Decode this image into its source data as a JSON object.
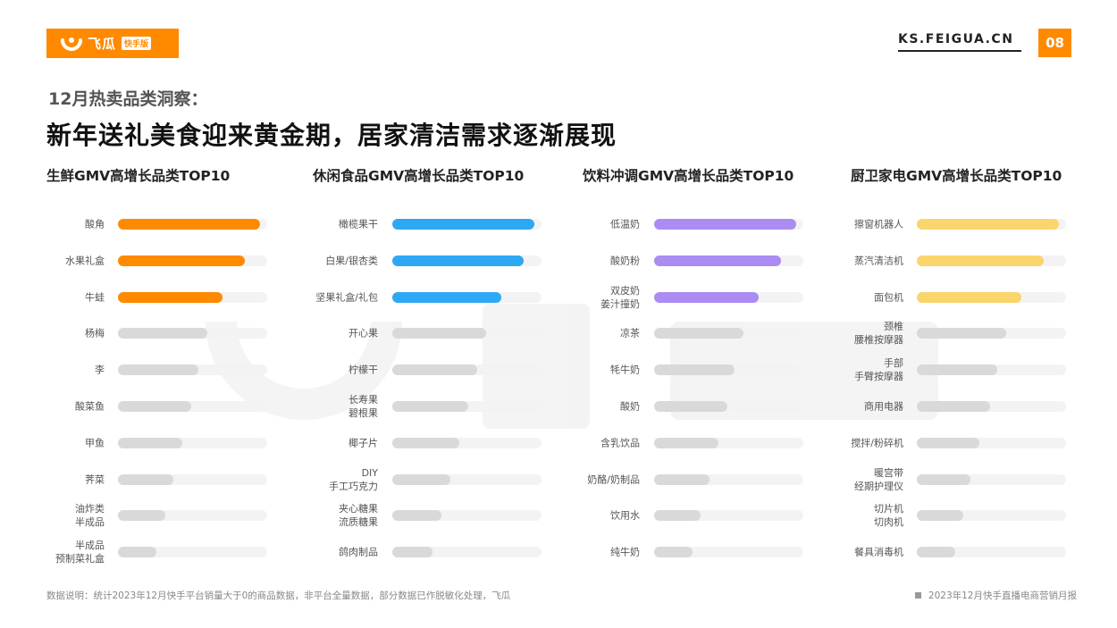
{
  "header": {
    "brand": "飞瓜",
    "brand_badge": "快手版",
    "site": "KS.FEIGUA.CN",
    "page_number": "08"
  },
  "subtitle": "12月热卖品类洞察：",
  "title": "新年送礼美食迎来黄金期，居家清洁需求逐渐展现",
  "colors": {
    "accent": "#FF8A00",
    "gray_bar": "#D9D9D9",
    "track": "#F3F3F3"
  },
  "chart_data": [
    {
      "type": "bar",
      "orientation": "horizontal",
      "title": "生鲜GMV高增长品类TOP10",
      "highlight_color": "#FF8A00",
      "highlight_count": 3,
      "xlim": [
        0,
        100
      ],
      "categories": [
        "酸角",
        "水果礼盒",
        "牛蛙",
        "杨梅",
        "李",
        "酸菜鱼",
        "甲鱼",
        "荠菜",
        "油炸类\n半成品",
        "半成品\n预制菜礼盒"
      ],
      "values": [
        95,
        85,
        70,
        60,
        54,
        49,
        43,
        37,
        32,
        26
      ]
    },
    {
      "type": "bar",
      "orientation": "horizontal",
      "title": "休闲食品GMV高增长品类TOP10",
      "highlight_color": "#2EA8F4",
      "highlight_count": 3,
      "xlim": [
        0,
        100
      ],
      "categories": [
        "橄榄果干",
        "白果/银杏类",
        "坚果礼盒/礼包",
        "开心果",
        "柠檬干",
        "长寿果\n碧根果",
        "椰子片",
        "DIY\n手工巧克力",
        "夹心糖果\n流质糖果",
        "鸽肉制品"
      ],
      "values": [
        95,
        88,
        73,
        63,
        57,
        51,
        45,
        39,
        33,
        27
      ]
    },
    {
      "type": "bar",
      "orientation": "horizontal",
      "title": "饮料冲调GMV高增长品类TOP10",
      "highlight_color": "#AB8CF2",
      "highlight_count": 3,
      "xlim": [
        0,
        100
      ],
      "categories": [
        "低温奶",
        "酸奶粉",
        "双皮奶\n姜汁撞奶",
        "凉茶",
        "牦牛奶",
        "酸奶",
        "含乳饮品",
        "奶酪/奶制品",
        "饮用水",
        "纯牛奶"
      ],
      "values": [
        95,
        85,
        70,
        60,
        54,
        49,
        43,
        37,
        31,
        26
      ]
    },
    {
      "type": "bar",
      "orientation": "horizontal",
      "title": "厨卫家电GMV高增长品类TOP10",
      "highlight_color": "#FAD56B",
      "highlight_count": 3,
      "xlim": [
        0,
        100
      ],
      "categories": [
        "擦窗机器人",
        "蒸汽清洁机",
        "面包机",
        "颈椎\n腰椎按摩器",
        "手部\n手臂按摩器",
        "商用电器",
        "搅拌/粉碎机",
        "暖宫带\n经期护理仪",
        "切片机\n切肉机",
        "餐具消毒机"
      ],
      "values": [
        95,
        85,
        70,
        60,
        54,
        49,
        42,
        36,
        31,
        26
      ]
    }
  ],
  "footer": {
    "note": "数据说明：统计2023年12月快手平台销量大于0的商品数据，非平台全量数据，部分数据已作脱敏化处理，飞瓜",
    "report": "2023年12月快手直播电商营销月报"
  }
}
